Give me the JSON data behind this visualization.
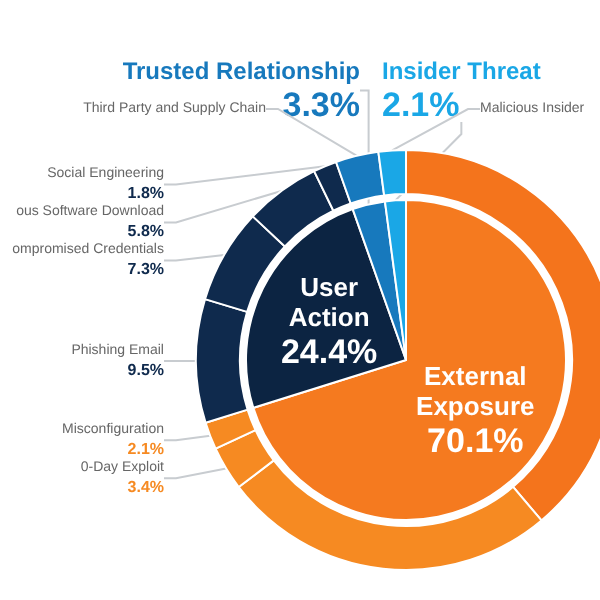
{
  "chart_data": [
    {
      "type": "pie",
      "categories": [
        "External Exposure",
        "User Action",
        "Trusted Relationship",
        "Insider Threat"
      ],
      "values": [
        70.1,
        24.4,
        3.3,
        2.1
      ],
      "colors": [
        "#f57a1f",
        "#0c2442",
        "#1779bd",
        "#1aa7e6"
      ],
      "value_labels": [
        "70.1%",
        "24.4%",
        "3.3%",
        "2.1%"
      ]
    },
    {
      "type": "donut",
      "categories": [
        null,
        null,
        "0-Day Exploit",
        "Misconfiguration",
        "Phishing Email",
        "ompromised Credentials",
        "ous Software Download",
        "Social Engineering",
        "Third Party and Supply Chain",
        "Malicious Insider"
      ],
      "values": [
        38.8,
        25.8,
        3.4,
        2.1,
        9.5,
        7.3,
        5.8,
        1.8,
        3.3,
        2.1
      ],
      "colors": [
        "#f4741c",
        "#f68a22",
        "#f68a22",
        "#f68a22",
        "#0f2a4d",
        "#0f2a4d",
        "#0f2a4d",
        "#0f2a4d",
        "#1779bd",
        "#1aa7e6"
      ],
      "value_labels": [
        null,
        null,
        "3.4%",
        "2.1%",
        "9.5%",
        "7.3%",
        "5.8%",
        "1.8%",
        null,
        null
      ]
    }
  ]
}
